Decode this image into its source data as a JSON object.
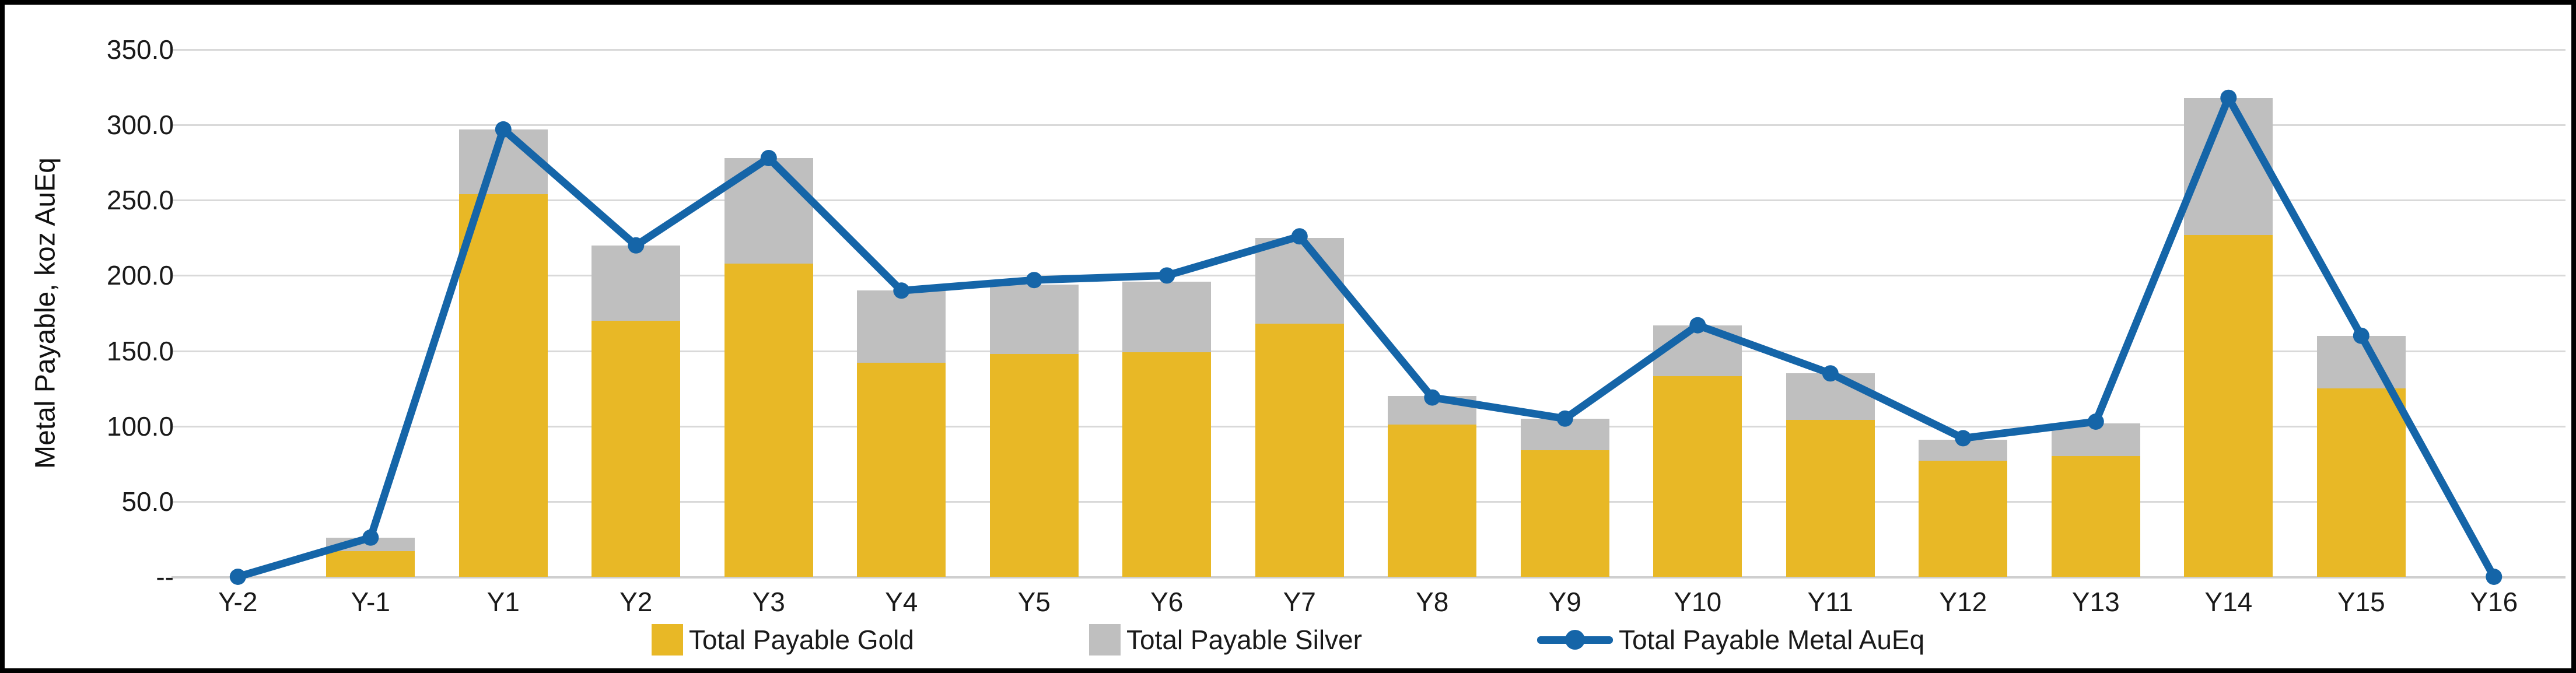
{
  "chart_data": {
    "type": "bar",
    "subtype": "stacked-bars-with-line-overlay",
    "title": "",
    "ylabel": "Metal Payable, koz AuEq",
    "xlabel": "",
    "ylim": [
      0,
      350
    ],
    "grid": "horizontal",
    "legend_position": "bottom-center",
    "categories": [
      "Y-2",
      "Y-1",
      "Y1",
      "Y2",
      "Y3",
      "Y4",
      "Y5",
      "Y6",
      "Y7",
      "Y8",
      "Y9",
      "Y10",
      "Y11",
      "Y12",
      "Y13",
      "Y14",
      "Y15",
      "Y16"
    ],
    "series": [
      {
        "name": "Total Payable Gold",
        "type": "bar",
        "color": "#E8B826",
        "values": [
          0,
          17,
          254,
          170,
          208,
          142,
          148,
          149,
          168,
          101,
          84,
          133,
          104,
          77,
          80,
          227,
          125,
          0
        ]
      },
      {
        "name": "Total Payable Silver",
        "type": "bar",
        "color": "#BFBFBF",
        "values": [
          0,
          9,
          43,
          50,
          70,
          48,
          46,
          47,
          57,
          19,
          21,
          34,
          31,
          14,
          22,
          91,
          35,
          0
        ]
      },
      {
        "name": "Total Payable Metal AuEq",
        "type": "line",
        "color": "#1565A8",
        "values": [
          0,
          26,
          297,
          220,
          278,
          190,
          197,
          200,
          226,
          119,
          105,
          167,
          135,
          92,
          103,
          318,
          160,
          0
        ]
      }
    ],
    "y_ticks": [
      {
        "value": 350,
        "label": "350.0"
      },
      {
        "value": 300,
        "label": "300.0"
      },
      {
        "value": 250,
        "label": "250.0"
      },
      {
        "value": 200,
        "label": "200.0"
      },
      {
        "value": 150,
        "label": "150.0"
      },
      {
        "value": 100,
        "label": "100.0"
      },
      {
        "value": 50,
        "label": "50.0"
      },
      {
        "value": 0,
        "label": "--"
      }
    ],
    "gridline_color": "#D9D9D9",
    "background_color": "#FFFFFF",
    "border_color": "#000000"
  }
}
